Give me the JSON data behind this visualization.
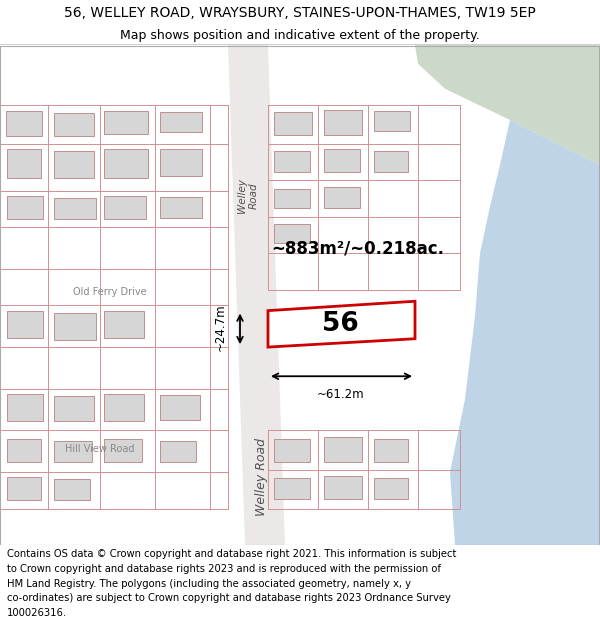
{
  "title_line1": "56, WELLEY ROAD, WRAYSBURY, STAINES-UPON-THAMES, TW19 5EP",
  "title_line2": "Map shows position and indicative extent of the property.",
  "area_label": "~883m²/~0.218ac.",
  "width_label": "~61.2m",
  "height_label": "~24.7m",
  "number_label": "56",
  "road_name_upper": "Welley\nRoad",
  "road_name_lower": "Welley Road",
  "street_name_old_ferry": "Old Ferry Drive",
  "street_name_hill_view": "Hill View Road",
  "footer_lines": [
    "Contains OS data © Crown copyright and database right 2021. This information is subject",
    "to Crown copyright and database rights 2023 and is reproduced with the permission of",
    "HM Land Registry. The polygons (including the associated geometry, namely x, y",
    "co-ordinates) are subject to Crown copyright and database rights 2023 Ordnance Survey",
    "100026316."
  ],
  "bg_color": "#f2f2f2",
  "highlight_fill": "#ffffff",
  "highlight_stroke": "#cc0000",
  "green_area": "#ccd9c8",
  "blue_area": "#c0d4e8",
  "road_bg": "#ede8e8",
  "building_fill": "#d6d6d6",
  "building_stroke": "#c09090",
  "boundary_color": "#d09090",
  "title_fontsize": 10,
  "subtitle_fontsize": 9,
  "footer_fontsize": 7.2
}
